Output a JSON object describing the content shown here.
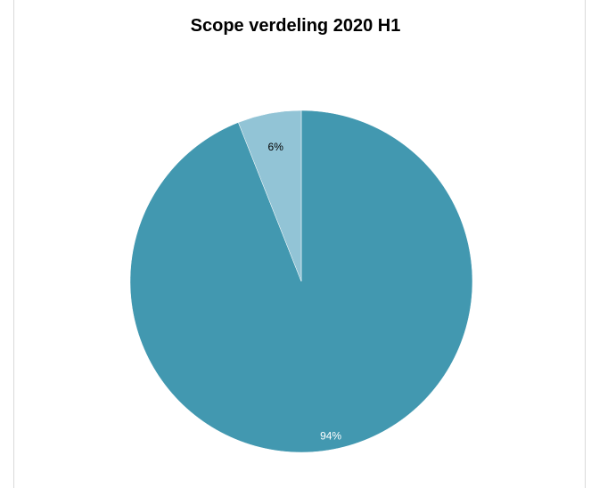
{
  "chart_data": {
    "type": "pie",
    "title": "Scope verdeling 2020 H1",
    "categories": [
      "",
      ""
    ],
    "values": [
      94,
      6
    ],
    "labels": [
      "94%",
      "6%"
    ],
    "colors": [
      "#4298b0",
      "#92c4d6"
    ],
    "label_colors": [
      "#ffffff",
      "#000000"
    ],
    "legend": "none"
  }
}
